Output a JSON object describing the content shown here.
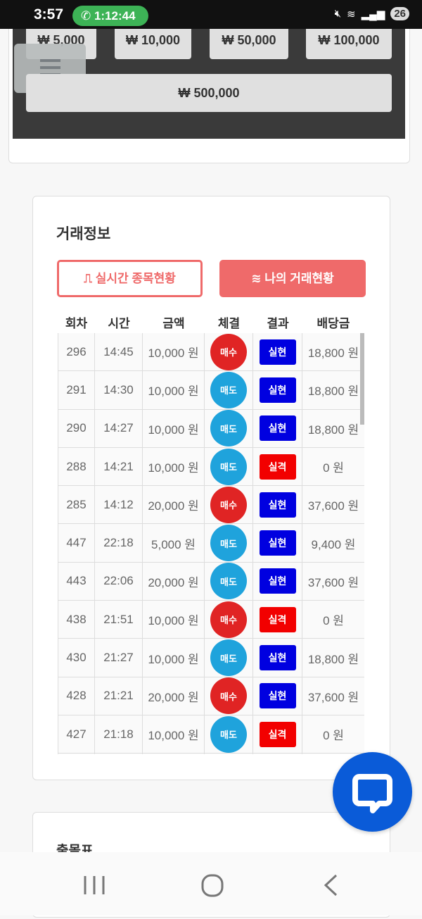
{
  "status_bar": {
    "time": "3:57",
    "call_duration": "1:12:44",
    "battery": "26"
  },
  "amount_buttons": [
    "₩ 5,000",
    "₩ 10,000",
    "₩ 50,000",
    "₩ 100,000",
    "₩ 500,000"
  ],
  "trade_info": {
    "title": "거래정보",
    "tab_realtime": "실시간 종목현황",
    "tab_my": "나의 거래현황",
    "columns": [
      "회차",
      "시간",
      "금액",
      "체결",
      "결과",
      "배당금"
    ],
    "colors": {
      "buy": "#e02424",
      "sell": "#1fa3dc",
      "win": "#0000e0",
      "lose": "#f20000"
    },
    "rows": [
      {
        "round": "296",
        "time": "14:45",
        "amount": "10,000 원",
        "side": "매수",
        "result": "실현",
        "payout": "18,800 원"
      },
      {
        "round": "291",
        "time": "14:30",
        "amount": "10,000 원",
        "side": "매도",
        "result": "실현",
        "payout": "18,800 원"
      },
      {
        "round": "290",
        "time": "14:27",
        "amount": "10,000 원",
        "side": "매도",
        "result": "실현",
        "payout": "18,800 원"
      },
      {
        "round": "288",
        "time": "14:21",
        "amount": "10,000 원",
        "side": "매도",
        "result": "실격",
        "payout": "0 원"
      },
      {
        "round": "285",
        "time": "14:12",
        "amount": "20,000 원",
        "side": "매수",
        "result": "실현",
        "payout": "37,600 원"
      },
      {
        "round": "447",
        "time": "22:18",
        "amount": "5,000 원",
        "side": "매도",
        "result": "실현",
        "payout": "9,400 원"
      },
      {
        "round": "443",
        "time": "22:06",
        "amount": "20,000 원",
        "side": "매도",
        "result": "실현",
        "payout": "37,600 원"
      },
      {
        "round": "438",
        "time": "21:51",
        "amount": "10,000 원",
        "side": "매수",
        "result": "실격",
        "payout": "0 원"
      },
      {
        "round": "430",
        "time": "21:27",
        "amount": "10,000 원",
        "side": "매도",
        "result": "실현",
        "payout": "18,800 원"
      },
      {
        "round": "428",
        "time": "21:21",
        "amount": "20,000 원",
        "side": "매수",
        "result": "실현",
        "payout": "37,600 원"
      },
      {
        "round": "427",
        "time": "21:18",
        "amount": "10,000 원",
        "side": "매도",
        "result": "실격",
        "payout": "0 원"
      }
    ]
  },
  "next_section": {
    "title": "출몰표"
  }
}
